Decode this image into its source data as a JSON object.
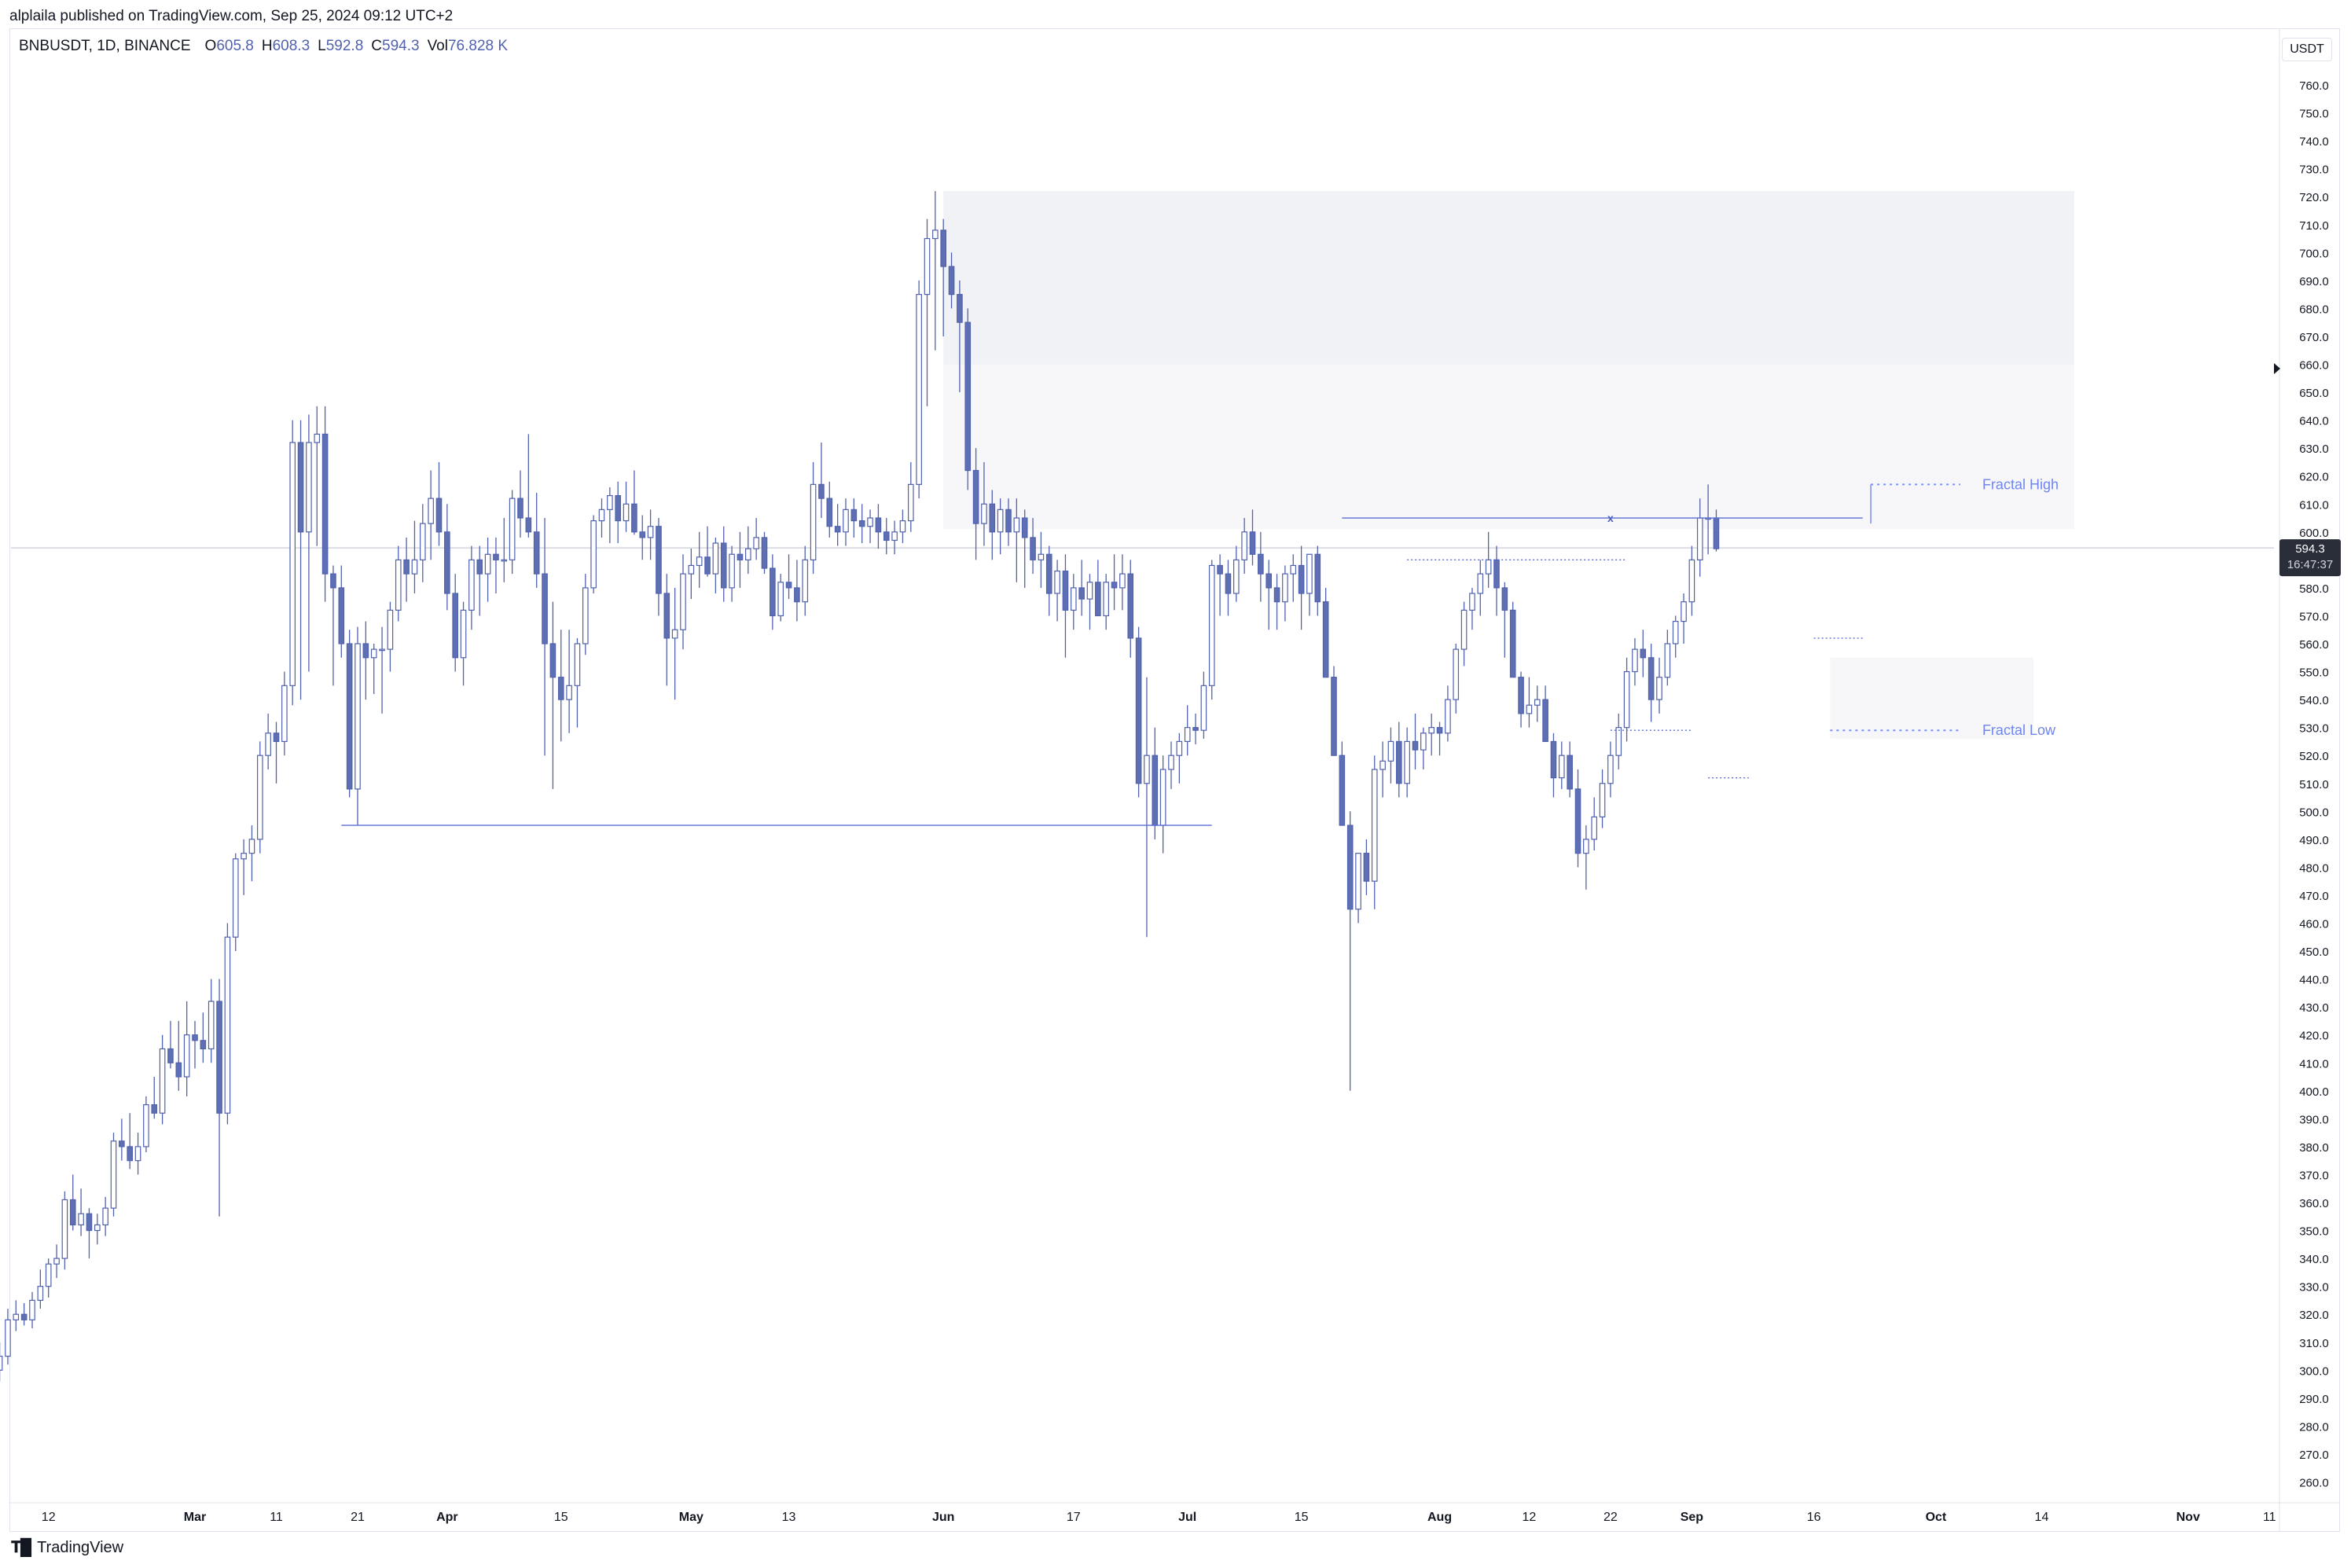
{
  "publisher": "alplaila published on TradingView.com, Sep 25, 2024 09:12 UTC+2",
  "legend": {
    "symbol": "BNBUSDT, 1D, BINANCE",
    "o_label": "O",
    "o_value": "605.8",
    "h_label": "H",
    "h_value": "608.3",
    "l_label": "L",
    "l_value": "592.8",
    "c_label": "C",
    "c_value": "594.3",
    "vol_label": "Vol",
    "vol_value": "76.828 K"
  },
  "currency_button": "USDT",
  "brand": "TradingView",
  "colors": {
    "up": "#5162ad",
    "down": "#5162ad",
    "up_fill": "#ffffff",
    "down_fill": "#5f6fb4",
    "grid": "#f0f3fa"
  },
  "chart_data": {
    "type": "candlestick",
    "y_range": [
      252,
      770
    ],
    "y_ticks": [
      "760.0",
      "750.0",
      "740.0",
      "730.0",
      "720.0",
      "710.0",
      "700.0",
      "690.0",
      "680.0",
      "670.0",
      "660.0",
      "650.0",
      "640.0",
      "630.0",
      "620.0",
      "610.0",
      "600.0",
      "590.0",
      "580.0",
      "570.0",
      "560.0",
      "550.0",
      "540.0",
      "530.0",
      "520.0",
      "510.0",
      "500.0",
      "490.0",
      "480.0",
      "470.0",
      "460.0",
      "450.0",
      "440.0",
      "430.0",
      "420.0",
      "410.0",
      "400.0",
      "390.0",
      "380.0",
      "370.0",
      "360.0",
      "350.0",
      "340.0",
      "330.0",
      "320.0",
      "310.0",
      "300.0",
      "290.0",
      "280.0",
      "270.0",
      "260.0"
    ],
    "x_ticks": [
      {
        "label": "12",
        "date": "2024-02-12"
      },
      {
        "label": "Mar",
        "date": "2024-03-01"
      },
      {
        "label": "11",
        "date": "2024-03-11"
      },
      {
        "label": "21",
        "date": "2024-03-21"
      },
      {
        "label": "Apr",
        "date": "2024-04-01"
      },
      {
        "label": "15",
        "date": "2024-04-15"
      },
      {
        "label": "May",
        "date": "2024-05-01"
      },
      {
        "label": "13",
        "date": "2024-05-13"
      },
      {
        "label": "Jun",
        "date": "2024-06-01"
      },
      {
        "label": "17",
        "date": "2024-06-17"
      },
      {
        "label": "Jul",
        "date": "2024-07-01"
      },
      {
        "label": "15",
        "date": "2024-07-15"
      },
      {
        "label": "Aug",
        "date": "2024-08-01"
      },
      {
        "label": "12",
        "date": "2024-08-12"
      },
      {
        "label": "22",
        "date": "2024-08-22"
      },
      {
        "label": "Sep",
        "date": "2024-09-01"
      },
      {
        "label": "16",
        "date": "2024-09-16"
      },
      {
        "label": "Oct",
        "date": "2024-10-01"
      },
      {
        "label": "14",
        "date": "2024-10-14"
      },
      {
        "label": "Nov",
        "date": "2024-11-01"
      },
      {
        "label": "11",
        "date": "2024-11-11"
      }
    ],
    "first_date": "2024-02-06",
    "candles": [
      [
        300,
        310,
        296,
        305
      ],
      [
        305,
        322,
        302,
        318
      ],
      [
        318,
        325,
        314,
        320
      ],
      [
        320,
        324,
        316,
        318
      ],
      [
        318,
        328,
        315,
        325
      ],
      [
        325,
        336,
        322,
        330
      ],
      [
        330,
        340,
        326,
        338
      ],
      [
        338,
        345,
        333,
        340
      ],
      [
        340,
        364,
        336,
        361
      ],
      [
        361,
        370,
        350,
        352
      ],
      [
        352,
        365,
        348,
        356
      ],
      [
        356,
        358,
        340,
        350
      ],
      [
        350,
        356,
        345,
        352
      ],
      [
        352,
        362,
        348,
        358
      ],
      [
        358,
        385,
        355,
        382
      ],
      [
        382,
        390,
        375,
        380
      ],
      [
        380,
        392,
        372,
        375
      ],
      [
        375,
        385,
        370,
        380
      ],
      [
        380,
        398,
        378,
        395
      ],
      [
        395,
        405,
        390,
        392
      ],
      [
        392,
        420,
        388,
        415
      ],
      [
        415,
        425,
        408,
        410
      ],
      [
        410,
        425,
        400,
        405
      ],
      [
        405,
        432,
        398,
        420
      ],
      [
        420,
        425,
        408,
        418
      ],
      [
        418,
        428,
        410,
        415
      ],
      [
        415,
        440,
        410,
        432
      ],
      [
        432,
        440,
        355,
        392
      ],
      [
        392,
        460,
        388,
        455
      ],
      [
        455,
        485,
        450,
        483
      ],
      [
        483,
        490,
        470,
        485
      ],
      [
        485,
        495,
        475,
        490
      ],
      [
        490,
        525,
        485,
        520
      ],
      [
        520,
        535,
        515,
        528
      ],
      [
        528,
        532,
        510,
        525
      ],
      [
        525,
        550,
        520,
        545
      ],
      [
        545,
        640,
        538,
        632
      ],
      [
        632,
        640,
        540,
        600
      ],
      [
        600,
        642,
        550,
        632
      ],
      [
        632,
        645,
        595,
        635
      ],
      [
        635,
        645,
        575,
        585
      ],
      [
        585,
        588,
        545,
        580
      ],
      [
        580,
        588,
        555,
        560
      ],
      [
        560,
        565,
        505,
        508
      ],
      [
        508,
        566,
        495,
        560
      ],
      [
        560,
        568,
        540,
        555
      ],
      [
        555,
        560,
        542,
        558
      ],
      [
        558,
        566,
        535,
        558
      ],
      [
        558,
        575,
        550,
        572
      ],
      [
        572,
        595,
        568,
        590
      ],
      [
        590,
        598,
        575,
        585
      ],
      [
        585,
        604,
        578,
        590
      ],
      [
        590,
        610,
        582,
        603
      ],
      [
        603,
        622,
        590,
        612
      ],
      [
        612,
        625,
        595,
        600
      ],
      [
        600,
        610,
        572,
        578
      ],
      [
        578,
        585,
        550,
        555
      ],
      [
        555,
        575,
        545,
        572
      ],
      [
        572,
        595,
        565,
        590
      ],
      [
        590,
        595,
        570,
        585
      ],
      [
        585,
        598,
        575,
        592
      ],
      [
        592,
        598,
        578,
        590
      ],
      [
        590,
        605,
        582,
        590
      ],
      [
        590,
        615,
        585,
        612
      ],
      [
        612,
        622,
        598,
        605
      ],
      [
        605,
        635,
        598,
        600
      ],
      [
        600,
        614,
        580,
        585
      ],
      [
        585,
        605,
        520,
        560
      ],
      [
        560,
        575,
        508,
        548
      ],
      [
        548,
        565,
        525,
        540
      ],
      [
        540,
        565,
        528,
        545
      ],
      [
        545,
        562,
        530,
        560
      ],
      [
        560,
        585,
        556,
        580
      ],
      [
        580,
        606,
        578,
        604
      ],
      [
        604,
        612,
        598,
        608
      ],
      [
        608,
        616,
        596,
        613
      ],
      [
        613,
        618,
        596,
        604
      ],
      [
        604,
        618,
        600,
        610
      ],
      [
        610,
        622,
        599,
        600
      ],
      [
        600,
        606,
        590,
        598
      ],
      [
        598,
        608,
        590,
        602
      ],
      [
        602,
        605,
        570,
        578
      ],
      [
        578,
        585,
        545,
        562
      ],
      [
        562,
        580,
        540,
        565
      ],
      [
        565,
        592,
        558,
        585
      ],
      [
        585,
        594,
        576,
        588
      ],
      [
        588,
        600,
        580,
        591
      ],
      [
        591,
        602,
        584,
        585
      ],
      [
        585,
        598,
        578,
        596
      ],
      [
        596,
        602,
        575,
        580
      ],
      [
        580,
        595,
        575,
        592
      ],
      [
        592,
        600,
        580,
        590
      ],
      [
        590,
        602,
        585,
        594
      ],
      [
        594,
        605,
        590,
        598
      ],
      [
        598,
        600,
        585,
        587
      ],
      [
        587,
        592,
        565,
        570
      ],
      [
        570,
        585,
        568,
        582
      ],
      [
        582,
        592,
        576,
        580
      ],
      [
        580,
        590,
        568,
        575
      ],
      [
        575,
        595,
        570,
        590
      ],
      [
        590,
        625,
        585,
        617
      ],
      [
        617,
        632,
        605,
        612
      ],
      [
        612,
        618,
        598,
        602
      ],
      [
        602,
        610,
        595,
        600
      ],
      [
        600,
        612,
        595,
        608
      ],
      [
        608,
        612,
        598,
        604
      ],
      [
        604,
        610,
        596,
        602
      ],
      [
        602,
        608,
        596,
        605
      ],
      [
        605,
        610,
        594,
        600
      ],
      [
        600,
        605,
        592,
        597
      ],
      [
        597,
        604,
        592,
        600
      ],
      [
        600,
        608,
        596,
        604
      ],
      [
        604,
        625,
        600,
        617
      ],
      [
        617,
        690,
        612,
        685
      ],
      [
        685,
        712,
        645,
        705
      ],
      [
        705,
        722,
        665,
        708
      ],
      [
        708,
        712,
        670,
        695
      ],
      [
        695,
        700,
        680,
        685
      ],
      [
        685,
        690,
        650,
        675
      ],
      [
        675,
        680,
        615,
        622
      ],
      [
        622,
        630,
        590,
        603
      ],
      [
        603,
        625,
        595,
        610
      ],
      [
        610,
        615,
        590,
        600
      ],
      [
        600,
        612,
        592,
        608
      ],
      [
        608,
        612,
        595,
        600
      ],
      [
        600,
        612,
        582,
        605
      ],
      [
        605,
        608,
        580,
        598
      ],
      [
        598,
        605,
        585,
        590
      ],
      [
        590,
        600,
        580,
        592
      ],
      [
        592,
        595,
        570,
        578
      ],
      [
        578,
        590,
        568,
        586
      ],
      [
        586,
        592,
        555,
        572
      ],
      [
        572,
        585,
        565,
        580
      ],
      [
        580,
        590,
        570,
        576
      ],
      [
        576,
        585,
        565,
        582
      ],
      [
        582,
        590,
        570,
        570
      ],
      [
        570,
        585,
        565,
        582
      ],
      [
        582,
        592,
        572,
        580
      ],
      [
        580,
        592,
        572,
        585
      ],
      [
        585,
        590,
        555,
        562
      ],
      [
        562,
        566,
        505,
        510
      ],
      [
        510,
        548,
        455,
        520
      ],
      [
        520,
        530,
        490,
        495
      ],
      [
        495,
        520,
        485,
        515
      ],
      [
        515,
        525,
        508,
        520
      ],
      [
        520,
        528,
        510,
        525
      ],
      [
        525,
        538,
        520,
        530
      ],
      [
        530,
        535,
        524,
        529
      ],
      [
        529,
        550,
        526,
        545
      ],
      [
        545,
        590,
        540,
        588
      ],
      [
        588,
        592,
        570,
        585
      ],
      [
        585,
        590,
        570,
        578
      ],
      [
        578,
        595,
        575,
        590
      ],
      [
        590,
        605,
        585,
        600
      ],
      [
        600,
        608,
        588,
        592
      ],
      [
        592,
        600,
        575,
        585
      ],
      [
        585,
        590,
        565,
        580
      ],
      [
        580,
        585,
        565,
        575
      ],
      [
        575,
        588,
        568,
        585
      ],
      [
        585,
        592,
        575,
        588
      ],
      [
        588,
        595,
        565,
        578
      ],
      [
        578,
        592,
        570,
        592
      ],
      [
        592,
        595,
        570,
        575
      ],
      [
        575,
        580,
        552,
        548
      ],
      [
        548,
        552,
        520,
        520
      ],
      [
        520,
        525,
        495,
        495
      ],
      [
        495,
        500,
        400,
        465
      ],
      [
        465,
        485,
        460,
        485
      ],
      [
        485,
        490,
        470,
        475
      ],
      [
        475,
        520,
        465,
        515
      ],
      [
        515,
        525,
        505,
        518
      ],
      [
        518,
        530,
        510,
        525
      ],
      [
        525,
        532,
        505,
        510
      ],
      [
        510,
        530,
        505,
        525
      ],
      [
        525,
        535,
        515,
        522
      ],
      [
        522,
        530,
        515,
        528
      ],
      [
        528,
        535,
        520,
        530
      ],
      [
        530,
        532,
        520,
        528
      ],
      [
        528,
        545,
        525,
        540
      ],
      [
        540,
        560,
        535,
        558
      ],
      [
        558,
        575,
        552,
        572
      ],
      [
        572,
        580,
        565,
        578
      ],
      [
        578,
        590,
        570,
        585
      ],
      [
        585,
        600,
        580,
        590
      ],
      [
        590,
        595,
        570,
        580
      ],
      [
        580,
        582,
        555,
        572
      ],
      [
        572,
        575,
        548,
        548
      ],
      [
        548,
        550,
        530,
        535
      ],
      [
        535,
        548,
        530,
        538
      ],
      [
        538,
        545,
        532,
        540
      ],
      [
        540,
        545,
        525,
        525
      ],
      [
        525,
        528,
        505,
        512
      ],
      [
        512,
        525,
        508,
        520
      ],
      [
        520,
        525,
        505,
        508
      ],
      [
        508,
        515,
        480,
        485
      ],
      [
        485,
        495,
        472,
        490
      ],
      [
        490,
        505,
        486,
        498
      ],
      [
        498,
        515,
        494,
        510
      ],
      [
        510,
        525,
        505,
        520
      ],
      [
        520,
        535,
        515,
        530
      ],
      [
        530,
        555,
        525,
        550
      ],
      [
        550,
        562,
        545,
        558
      ],
      [
        558,
        565,
        548,
        555
      ],
      [
        555,
        560,
        532,
        540
      ],
      [
        540,
        555,
        535,
        548
      ],
      [
        548,
        565,
        545,
        560
      ],
      [
        560,
        570,
        555,
        568
      ],
      [
        568,
        578,
        560,
        575
      ],
      [
        575,
        595,
        570,
        590
      ],
      [
        590,
        612,
        584,
        605
      ],
      [
        605,
        617,
        592,
        605
      ],
      [
        605,
        608,
        593,
        594
      ]
    ],
    "zones": [
      {
        "type": "supply",
        "from": "2024-06-01",
        "to": "2024-10-18",
        "low": 660,
        "high": 722
      },
      {
        "type": "supply",
        "from": "2024-06-01",
        "to": "2024-10-18",
        "low": 601,
        "high": 660
      },
      {
        "type": "demand",
        "from": "2024-09-18",
        "to": "2024-10-13",
        "low": 526,
        "high": 555
      }
    ],
    "levels": [
      {
        "name": "Fractal High",
        "value": 617,
        "from": "2024-09-23",
        "to": "2024-10-04"
      },
      {
        "name": "Fractal Low",
        "value": 529,
        "from": "2024-09-18",
        "to": "2024-10-04"
      }
    ],
    "last_price": "594.3",
    "countdown": "16:47:37",
    "marker": "x"
  }
}
